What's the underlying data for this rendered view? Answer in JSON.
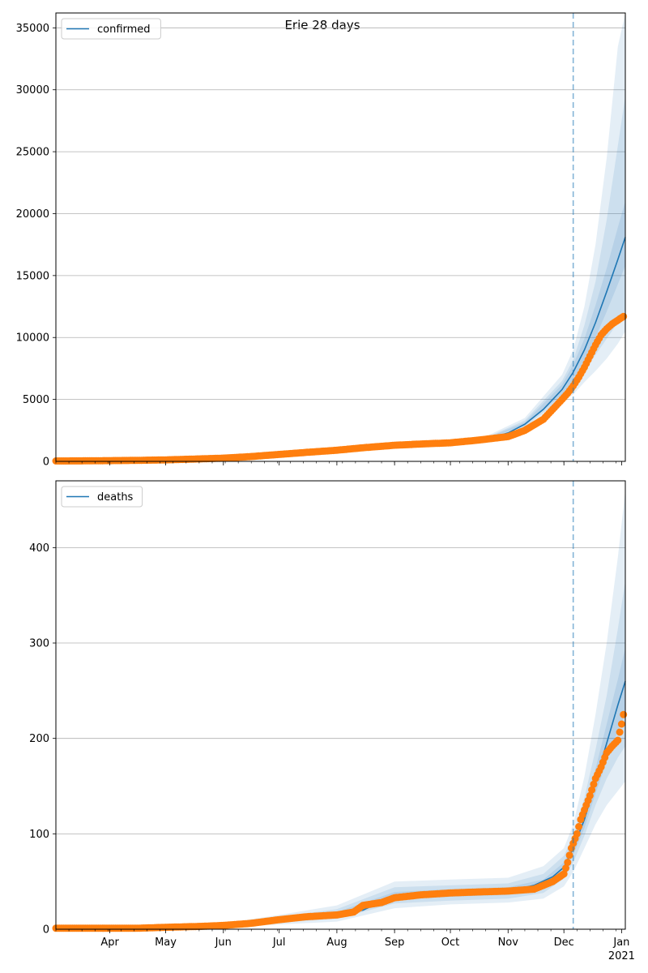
{
  "figure_title": "Erie 28 days",
  "colors": {
    "line": "#1f77b4",
    "points": "#ff7f0e",
    "band": "#1f77b4",
    "vline": "#1f77b4",
    "grid": "#b0b0b0"
  },
  "chart_data": [
    {
      "type": "line",
      "title": "Erie 28 days",
      "legend": [
        "confirmed"
      ],
      "legend_loc": "upper left",
      "grid": "y",
      "xlim": [
        "2020-03-03",
        "2021-01-03"
      ],
      "ylim": [
        0,
        36200
      ],
      "yticks": [
        0,
        5000,
        10000,
        15000,
        20000,
        25000,
        30000,
        35000
      ],
      "xticks_major": [
        {
          "date": "2020-04-01",
          "label": "Apr"
        },
        {
          "date": "2020-05-01",
          "label": "May"
        },
        {
          "date": "2020-06-01",
          "label": "Jun"
        },
        {
          "date": "2020-07-01",
          "label": "Jul"
        },
        {
          "date": "2020-08-01",
          "label": "Aug"
        },
        {
          "date": "2020-09-01",
          "label": "Sep"
        },
        {
          "date": "2020-10-01",
          "label": "Oct"
        },
        {
          "date": "2020-11-01",
          "label": "Nov"
        },
        {
          "date": "2020-12-01",
          "label": "Dec"
        },
        {
          "date": "2021-01-01",
          "label": "Jan",
          "sublabel": "2021"
        }
      ],
      "vline_date": "2020-12-06",
      "model_line": {
        "name": "confirmed",
        "x": [
          "2020-03-03",
          "2020-04-01",
          "2020-05-01",
          "2020-06-01",
          "2020-07-01",
          "2020-08-01",
          "2020-09-01",
          "2020-10-01",
          "2020-10-20",
          "2020-11-01",
          "2020-11-10",
          "2020-11-20",
          "2020-11-30",
          "2020-12-06",
          "2020-12-12",
          "2020-12-18",
          "2020-12-24",
          "2020-12-30",
          "2021-01-03"
        ],
        "y": [
          0,
          50,
          120,
          300,
          600,
          900,
          1300,
          1500,
          1800,
          2300,
          3000,
          4200,
          5800,
          7200,
          9000,
          11200,
          13700,
          16300,
          18100
        ]
      },
      "bands": [
        {
          "x": [
            "2020-10-20",
            "2020-11-10",
            "2020-11-30",
            "2020-12-06",
            "2020-12-12",
            "2020-12-18",
            "2020-12-24",
            "2020-12-30",
            "2021-01-03"
          ],
          "lower": [
            1700,
            2700,
            4800,
            5400,
            6400,
            7300,
            8300,
            9500,
            10500
          ],
          "upper": [
            2000,
            3500,
            7000,
            9000,
            12500,
            17500,
            24500,
            33500,
            36200
          ]
        },
        {
          "x": [
            "2020-10-20",
            "2020-11-10",
            "2020-11-30",
            "2020-12-06",
            "2020-12-12",
            "2020-12-18",
            "2020-12-24",
            "2020-12-30",
            "2021-01-03"
          ],
          "lower": [
            1750,
            2800,
            5100,
            6000,
            7300,
            8600,
            9900,
            11200,
            12200
          ],
          "upper": [
            1900,
            3300,
            6500,
            8200,
            11000,
            14500,
            19500,
            25500,
            29500
          ]
        },
        {
          "x": [
            "2020-10-20",
            "2020-11-10",
            "2020-11-30",
            "2020-12-06",
            "2020-12-12",
            "2020-12-18",
            "2020-12-24",
            "2020-12-30",
            "2021-01-03"
          ],
          "lower": [
            1780,
            2900,
            5400,
            6600,
            8200,
            10000,
            12100,
            14300,
            15800
          ],
          "upper": [
            1850,
            3150,
            6200,
            7800,
            9900,
            12600,
            15600,
            18900,
            21000
          ]
        }
      ],
      "observed": {
        "name": "observed confirmed",
        "x": [
          "2020-03-03",
          "2020-03-15",
          "2020-04-01",
          "2020-04-15",
          "2020-05-01",
          "2020-05-15",
          "2020-06-01",
          "2020-06-15",
          "2020-07-01",
          "2020-07-15",
          "2020-08-01",
          "2020-08-15",
          "2020-09-01",
          "2020-09-15",
          "2020-10-01",
          "2020-10-15",
          "2020-11-01",
          "2020-11-10",
          "2020-11-20",
          "2020-11-25",
          "2020-11-30",
          "2020-12-03",
          "2020-12-06",
          "2020-12-09",
          "2020-12-12",
          "2020-12-15",
          "2020-12-18",
          "2020-12-21",
          "2020-12-24",
          "2020-12-27",
          "2020-12-30",
          "2021-01-02"
        ],
        "y": [
          30,
          40,
          60,
          80,
          120,
          180,
          260,
          380,
          560,
          720,
          900,
          1100,
          1300,
          1400,
          1500,
          1700,
          2000,
          2500,
          3400,
          4200,
          5000,
          5500,
          6100,
          6800,
          7600,
          8500,
          9400,
          10200,
          10700,
          11100,
          11400,
          11700
        ]
      }
    },
    {
      "type": "line",
      "title": "",
      "legend": [
        "deaths"
      ],
      "legend_loc": "upper left",
      "grid": "y",
      "xlim": [
        "2020-03-03",
        "2021-01-03"
      ],
      "ylim": [
        0,
        470
      ],
      "yticks": [
        0,
        100,
        200,
        300,
        400
      ],
      "xticks_major": [
        {
          "date": "2020-04-01",
          "label": "Apr"
        },
        {
          "date": "2020-05-01",
          "label": "May"
        },
        {
          "date": "2020-06-01",
          "label": "Jun"
        },
        {
          "date": "2020-07-01",
          "label": "Jul"
        },
        {
          "date": "2020-08-01",
          "label": "Aug"
        },
        {
          "date": "2020-09-01",
          "label": "Sep"
        },
        {
          "date": "2020-10-01",
          "label": "Oct"
        },
        {
          "date": "2020-11-01",
          "label": "Nov"
        },
        {
          "date": "2020-12-01",
          "label": "Dec"
        },
        {
          "date": "2021-01-01",
          "label": "Jan",
          "sublabel": "2021"
        }
      ],
      "vline_date": "2020-12-06",
      "model_line": {
        "name": "deaths",
        "x": [
          "2020-03-03",
          "2020-04-15",
          "2020-05-15",
          "2020-06-01",
          "2020-06-15",
          "2020-07-01",
          "2020-07-15",
          "2020-08-01",
          "2020-08-15",
          "2020-09-01",
          "2020-10-01",
          "2020-11-01",
          "2020-11-15",
          "2020-11-25",
          "2020-12-01",
          "2020-12-06",
          "2020-12-12",
          "2020-12-18",
          "2020-12-24",
          "2020-12-30",
          "2021-01-03"
        ],
        "y": [
          0,
          0,
          2,
          4,
          6,
          9,
          12,
          15,
          20,
          35,
          38,
          40,
          46,
          55,
          65,
          85,
          115,
          155,
          195,
          235,
          260
        ]
      },
      "bands": [
        {
          "x": [
            "2020-06-01",
            "2020-07-01",
            "2020-08-01",
            "2020-09-01",
            "2020-10-01",
            "2020-11-01",
            "2020-11-20",
            "2020-12-01",
            "2020-12-06",
            "2020-12-12",
            "2020-12-18",
            "2020-12-24",
            "2020-12-30",
            "2021-01-03"
          ],
          "lower": [
            2,
            5,
            8,
            22,
            26,
            28,
            32,
            45,
            60,
            85,
            110,
            130,
            145,
            155
          ],
          "upper": [
            6,
            15,
            25,
            50,
            52,
            54,
            66,
            85,
            110,
            160,
            225,
            300,
            390,
            460
          ]
        },
        {
          "x": [
            "2020-06-01",
            "2020-07-01",
            "2020-08-01",
            "2020-09-01",
            "2020-10-01",
            "2020-11-01",
            "2020-11-20",
            "2020-12-01",
            "2020-12-06",
            "2020-12-12",
            "2020-12-18",
            "2020-12-24",
            "2020-12-30",
            "2021-01-03"
          ],
          "lower": [
            3,
            7,
            11,
            27,
            30,
            32,
            38,
            53,
            70,
            98,
            130,
            158,
            180,
            192
          ],
          "upper": [
            5,
            13,
            21,
            44,
            46,
            48,
            58,
            77,
            98,
            138,
            188,
            245,
            315,
            365
          ]
        },
        {
          "x": [
            "2020-06-01",
            "2020-07-01",
            "2020-08-01",
            "2020-09-01",
            "2020-10-01",
            "2020-11-01",
            "2020-11-20",
            "2020-12-01",
            "2020-12-06",
            "2020-12-12",
            "2020-12-18",
            "2020-12-24",
            "2020-12-30",
            "2021-01-03"
          ],
          "lower": [
            3,
            8,
            13,
            31,
            34,
            36,
            43,
            59,
            78,
            106,
            142,
            176,
            208,
            225
          ],
          "upper": [
            5,
            11,
            18,
            39,
            42,
            44,
            52,
            70,
            90,
            124,
            168,
            215,
            262,
            295
          ]
        }
      ],
      "observed": {
        "name": "observed deaths",
        "x": [
          "2020-03-03",
          "2020-04-15",
          "2020-05-01",
          "2020-05-20",
          "2020-06-01",
          "2020-06-15",
          "2020-07-01",
          "2020-07-15",
          "2020-08-01",
          "2020-08-10",
          "2020-08-15",
          "2020-08-25",
          "2020-09-01",
          "2020-09-15",
          "2020-10-01",
          "2020-10-15",
          "2020-11-01",
          "2020-11-15",
          "2020-11-25",
          "2020-12-01",
          "2020-12-03",
          "2020-12-05",
          "2020-12-08",
          "2020-12-10",
          "2020-12-12",
          "2020-12-15",
          "2020-12-18",
          "2020-12-21",
          "2020-12-24",
          "2020-12-27",
          "2020-12-30",
          "2021-01-01",
          "2021-01-02"
        ],
        "y": [
          1,
          1,
          2,
          3,
          4,
          6,
          10,
          13,
          15,
          18,
          25,
          28,
          33,
          36,
          38,
          39,
          40,
          42,
          50,
          58,
          70,
          85,
          100,
          115,
          125,
          140,
          158,
          170,
          185,
          192,
          198,
          215,
          225
        ]
      }
    }
  ]
}
